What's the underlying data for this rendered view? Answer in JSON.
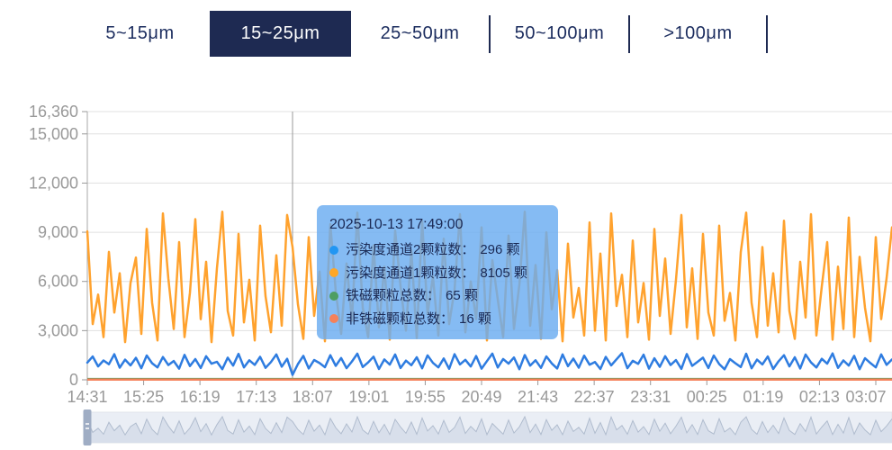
{
  "tabs": {
    "items": [
      {
        "label": "5~15μm",
        "selected": false
      },
      {
        "label": "15~25μm",
        "selected": true
      },
      {
        "label": "25~50μm",
        "selected": false
      },
      {
        "label": "50~100μm",
        "selected": false
      },
      {
        "label": ">100μm",
        "selected": false
      }
    ]
  },
  "colors": {
    "accent_navy": "#1e2a52",
    "axis_label": "#999999",
    "grid_line": "#e0e0e0",
    "axis_line": "#aaaaaa",
    "crosshair": "#999999",
    "tooltip_bg": "rgba(106,172,240,0.82)",
    "slider_track": "#eaeef5",
    "slider_fill": "#d8dfeb",
    "slider_line": "#b0bcce",
    "slider_handle": "#9fadc4"
  },
  "tooltip": {
    "title": "2025-10-13 17:49:00",
    "rows": [
      {
        "color": "#2196f3",
        "label": "污染度通道2颗粒数：",
        "value": "296 颗"
      },
      {
        "color": "#ffa726",
        "label": "污染度通道1颗粒数：",
        "value": "8105 颗"
      },
      {
        "color": "#4e9e62",
        "label": "铁磁颗粒总数：",
        "value": "65 颗"
      },
      {
        "color": "#f5815a",
        "label": "非铁磁颗粒总数：",
        "value": "16 颗"
      }
    ]
  },
  "chart_data": {
    "type": "line",
    "title": "",
    "xlabel": "",
    "ylabel": "",
    "grid": true,
    "legend_position": "none",
    "x_axis": {
      "labels": [
        "14:31",
        "15:25",
        "16:19",
        "17:13",
        "18:07",
        "19:01",
        "19:55",
        "20:49",
        "21:43",
        "22:37",
        "23:31",
        "00:25",
        "01:19",
        "02:13",
        "03:07"
      ]
    },
    "y_axis": {
      "max": 16360,
      "tick_values": [
        16360,
        15000,
        12000,
        9000,
        6000,
        3000,
        0
      ],
      "tick_labels": [
        "16,360",
        "15,000",
        "12,000",
        "9,000",
        "6,000",
        "3,000",
        "0"
      ]
    },
    "crosshair": {
      "time": "17:49",
      "index": 38
    },
    "series": [
      {
        "name": "铁磁颗粒总数",
        "color": "#4e9e62",
        "width": 2,
        "constant": 65
      },
      {
        "name": "非铁磁颗粒总数",
        "color": "#f5815a",
        "width": 2.5,
        "constant": 16
      },
      {
        "name": "污染度通道1颗粒数",
        "color": "#ffa22e",
        "width": 2.5,
        "values": [
          9060,
          3400,
          5200,
          2600,
          7800,
          4100,
          6500,
          2300,
          5900,
          7461,
          2800,
          9200,
          4700,
          2400,
          10150,
          6200,
          3100,
          8400,
          2600,
          5300,
          9800,
          3700,
          7200,
          2300,
          6800,
          10250,
          4200,
          2700,
          8900,
          3500,
          6100,
          2400,
          9400,
          5100,
          2900,
          7600,
          3300,
          10050,
          8105,
          4600,
          2500,
          8700,
          3900,
          6600,
          2350,
          9500,
          5400,
          2800,
          7100,
          3600,
          10200,
          4400,
          2600,
          8200,
          3200,
          6900,
          2450,
          9100,
          5700,
          3000,
          7900,
          2550,
          9700,
          4000,
          6300,
          2700,
          8600,
          3400,
          5500,
          10100,
          2900,
          6000,
          3700,
          9300,
          2400,
          7300,
          4900,
          2600,
          8800,
          3100,
          5800,
          10250,
          3300,
          7000,
          2500,
          9000,
          4300,
          6700,
          2350,
          8300,
          3800,
          5600,
          2700,
          9600,
          3000,
          7700,
          2400,
          10150,
          4500,
          6400,
          2600,
          8500,
          3500,
          5900,
          2450,
          9200,
          3900,
          7400,
          2800,
          6100,
          10050,
          3200,
          6800,
          2500,
          8900,
          4100,
          2700,
          9400,
          3600,
          5300,
          2400,
          7800,
          10200,
          4700,
          2600,
          8100,
          3300,
          6500,
          2900,
          9700,
          4200,
          2500,
          7200,
          3800,
          10100,
          2700,
          5700,
          8400,
          2450,
          6900,
          3100,
          9900,
          2600,
          7500,
          4400,
          2350,
          8700,
          3700,
          6200,
          9300
        ]
      },
      {
        "name": "污染度通道2颗粒数",
        "color": "#2e7ce0",
        "width": 2.5,
        "values": [
          1050,
          1420,
          820,
          1180,
          950,
          1560,
          740,
          1230,
          880,
          1340,
          700,
          1480,
          1010,
          760,
          1390,
          900,
          1150,
          680,
          1520,
          840,
          1260,
          720,
          1440,
          980,
          1100,
          650,
          1350,
          870,
          1580,
          760,
          1190,
          910,
          1400,
          730,
          1080,
          1550,
          800,
          1280,
          296,
          960,
          1460,
          690,
          1210,
          1020,
          770,
          1500,
          850,
          1330,
          710,
          1120,
          1590,
          780,
          1060,
          1410,
          660,
          1240,
          930,
          1540,
          720,
          1170,
          890,
          1380,
          700,
          1490,
          1030,
          760,
          1300,
          670,
          1560,
          940,
          1220,
          810,
          1450,
          680,
          1140,
          1600,
          750,
          1270,
          990,
          1360,
          650,
          1510,
          860,
          1190,
          730,
          1430,
          1000,
          690,
          1550,
          830,
          1290,
          740,
          1470,
          920,
          1080,
          660,
          1400,
          880,
          1250,
          1620,
          710,
          1160,
          970,
          1530,
          680,
          1310,
          790,
          1440,
          900,
          1200,
          670,
          1570,
          850,
          1100,
          1350,
          720,
          1480,
          960,
          640,
          1260,
          1010,
          780,
          1590,
          700,
          1230,
          940,
          1420,
          660,
          1130,
          1500,
          820,
          1370,
          690,
          1540,
          1060,
          750,
          1280,
          980,
          1610,
          730,
          1180,
          870,
          1460,
          650,
          1320,
          1020,
          760,
          1550,
          910,
          1240
        ]
      }
    ]
  }
}
